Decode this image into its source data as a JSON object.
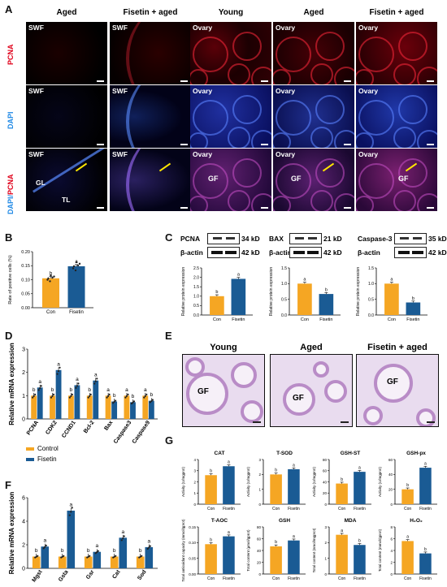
{
  "panel_A": {
    "letter": "A",
    "columns": [
      "Aged",
      "Fisetin + aged",
      "Young",
      "Aged",
      "Fisetin + aged"
    ],
    "row_labels": {
      "pcna": "PCNA",
      "dapi": "DAPI",
      "merge_dapi": "DAPI/",
      "merge_pcna": "PCNA"
    },
    "tile_labels": [
      "SWF",
      "SWF",
      "Ovary",
      "Ovary",
      "Ovary"
    ],
    "annotations": {
      "gl": "GL",
      "tl": "TL",
      "gf": "GF"
    },
    "colors": {
      "pcna": "#e0001a",
      "dapi": "#1e88e5"
    }
  },
  "panel_B": {
    "letter": "B"
  },
  "panel_C": {
    "letter": "C",
    "blots": [
      {
        "protein": "PCNA",
        "protein_kd": "34 kD",
        "ref": "β-actin",
        "ref_kd": "42 kD"
      },
      {
        "protein": "BAX",
        "protein_kd": "21 kD",
        "ref": "β-actin",
        "ref_kd": "42 kD"
      },
      {
        "protein": "Caspase-3",
        "protein_kd": "35 kD",
        "ref": "β-actin",
        "ref_kd": "42 kD"
      }
    ]
  },
  "panel_D": {
    "letter": "D"
  },
  "panel_E": {
    "letter": "E",
    "columns": [
      "Young",
      "Aged",
      "Fisetin + aged"
    ],
    "label": "GF"
  },
  "panel_F": {
    "letter": "F"
  },
  "panel_G": {
    "letter": "G"
  },
  "legend": {
    "control": "Control",
    "fisetin": "Fisetin",
    "color_control": "#f5a623",
    "color_fisetin": "#1a5b94"
  },
  "chart_data": [
    {
      "id": "B",
      "type": "bar",
      "ylabel": "Rate of positive cells (%)",
      "categories": [
        "Con",
        "Fisetin"
      ],
      "values": [
        0.105,
        0.148
      ],
      "ylim": [
        0,
        0.2
      ],
      "ticks": [
        "0.00",
        "0.05",
        "0.10",
        "0.15",
        "0.20"
      ],
      "letters": [
        "b",
        "a"
      ]
    },
    {
      "id": "C1",
      "type": "bar",
      "ylabel": "Relative protein expression",
      "categories": [
        "Con",
        "Fisetin"
      ],
      "values": [
        1.0,
        1.92
      ],
      "ylim": [
        0,
        2.5
      ],
      "ticks": [
        "0.0",
        "0.5",
        "1.0",
        "1.5",
        "2.0",
        "2.5"
      ],
      "letters": [
        "b",
        "a"
      ]
    },
    {
      "id": "C2",
      "type": "bar",
      "ylabel": "Relative protein expression",
      "categories": [
        "Con",
        "Fisetin"
      ],
      "values": [
        1.0,
        0.67
      ],
      "ylim": [
        0,
        1.5
      ],
      "ticks": [
        "0.0",
        "0.5",
        "1.0",
        "1.5"
      ],
      "letters": [
        "a",
        "b"
      ]
    },
    {
      "id": "C3",
      "type": "bar",
      "ylabel": "Relative protein expression",
      "categories": [
        "Con",
        "Fisetin"
      ],
      "values": [
        1.0,
        0.4
      ],
      "ylim": [
        0,
        1.5
      ],
      "ticks": [
        "0.0",
        "0.5",
        "1.0",
        "1.5"
      ],
      "letters": [
        "a",
        "b"
      ]
    },
    {
      "id": "D",
      "type": "bar",
      "ylabel": "Relative mRNA expression",
      "categories": [
        "PCNA",
        "CDK2",
        "CCND1",
        "Bcl-2",
        "Bax",
        "Caspase3",
        "Caspase9"
      ],
      "series": [
        {
          "name": "Control",
          "values": [
            1.0,
            1.0,
            1.0,
            1.0,
            1.0,
            1.0,
            1.0
          ]
        },
        {
          "name": "Fisetin",
          "values": [
            1.35,
            2.1,
            1.45,
            1.65,
            0.75,
            0.72,
            0.78
          ]
        }
      ],
      "ylim": [
        0,
        3
      ],
      "ticks": [
        "0",
        "1",
        "2",
        "3"
      ],
      "letters_control": [
        "b",
        "b",
        "b",
        "b",
        "a",
        "a",
        "a"
      ],
      "letters_fisetin": [
        "a",
        "a",
        "a",
        "a",
        "b",
        "b",
        "b"
      ]
    },
    {
      "id": "F",
      "type": "bar",
      "ylabel": "Relative mRNA expression",
      "categories": [
        "Mgst",
        "Gsta",
        "Gsr",
        "Cat",
        "Sod"
      ],
      "series": [
        {
          "name": "Control",
          "values": [
            1.0,
            1.0,
            1.0,
            1.0,
            1.0
          ]
        },
        {
          "name": "Fisetin",
          "values": [
            1.85,
            4.9,
            1.4,
            2.6,
            1.8
          ]
        }
      ],
      "ylim": [
        0,
        6
      ],
      "ticks": [
        "0",
        "2",
        "4",
        "6"
      ],
      "letters_control": [
        "b",
        "b",
        "b",
        "b",
        "b"
      ],
      "letters_fisetin": [
        "a",
        "a",
        "a",
        "a",
        "a"
      ]
    },
    {
      "id": "G1",
      "type": "bar",
      "title": "CAT",
      "ylabel": "Activity (U/mgprot)",
      "categories": [
        "Con",
        "Fisetin"
      ],
      "values": [
        2.6,
        3.4
      ],
      "ylim": [
        0,
        4
      ],
      "ticks": [
        "0",
        "1",
        "2",
        "3",
        "4"
      ],
      "letters": [
        "b",
        "a"
      ]
    },
    {
      "id": "G2",
      "type": "bar",
      "title": "T-SOD",
      "ylabel": "Activity (U/mgprot)",
      "categories": [
        "Con",
        "Fisetin"
      ],
      "values": [
        2.0,
        2.35
      ],
      "ylim": [
        0,
        3
      ],
      "ticks": [
        "0",
        "1",
        "2",
        "3"
      ],
      "letters": [
        "b",
        "a"
      ]
    },
    {
      "id": "G3",
      "type": "bar",
      "title": "GSH-ST",
      "ylabel": "Activity (U/mgprot)",
      "categories": [
        "Con",
        "Fisetin"
      ],
      "values": [
        37,
        58
      ],
      "ylim": [
        0,
        80
      ],
      "ticks": [
        "0",
        "20",
        "40",
        "60",
        "80"
      ],
      "letters": [
        "b",
        "a"
      ]
    },
    {
      "id": "G4",
      "type": "bar",
      "title": "GSH-px",
      "ylabel": "Activity (U/mgprot)",
      "categories": [
        "Con",
        "Fisetin"
      ],
      "values": [
        20,
        49
      ],
      "ylim": [
        0,
        60
      ],
      "ticks": [
        "0",
        "20",
        "40",
        "60"
      ],
      "letters": [
        "b",
        "a"
      ]
    },
    {
      "id": "G5",
      "type": "bar",
      "title": "T-AOC",
      "ylabel": "Total antioxidant capacity (mmol/gprot)",
      "categories": [
        "Con",
        "Fisetin"
      ],
      "values": [
        0.095,
        0.12
      ],
      "ylim": [
        0,
        0.15
      ],
      "ticks": [
        "0.00",
        "0.05",
        "0.10",
        "0.15"
      ],
      "letters": [
        "b",
        "a"
      ]
    },
    {
      "id": "G6",
      "type": "bar",
      "title": "GSH",
      "ylabel": "Total content (μmol/gprot)",
      "categories": [
        "Con",
        "Fisetin"
      ],
      "values": [
        47,
        57
      ],
      "ylim": [
        0,
        80
      ],
      "ticks": [
        "0",
        "20",
        "40",
        "60",
        "80"
      ],
      "letters": [
        "b",
        "a"
      ]
    },
    {
      "id": "G7",
      "type": "bar",
      "title": "MDA",
      "ylabel": "Total content (nmol/mgprot)",
      "categories": [
        "Con",
        "Fisetin"
      ],
      "values": [
        2.5,
        1.85
      ],
      "ylim": [
        0,
        3
      ],
      "ticks": [
        "0",
        "1",
        "2",
        "3"
      ],
      "letters": [
        "a",
        "b"
      ]
    },
    {
      "id": "G8",
      "type": "bar",
      "title": "H₂O₂",
      "ylabel": "Total content (mmol/gprot)",
      "categories": [
        "Con",
        "Fisetin"
      ],
      "values": [
        5.6,
        3.5
      ],
      "ylim": [
        0,
        8
      ],
      "ticks": [
        "0",
        "2",
        "4",
        "6",
        "8"
      ],
      "letters": [
        "a",
        "b"
      ]
    }
  ]
}
